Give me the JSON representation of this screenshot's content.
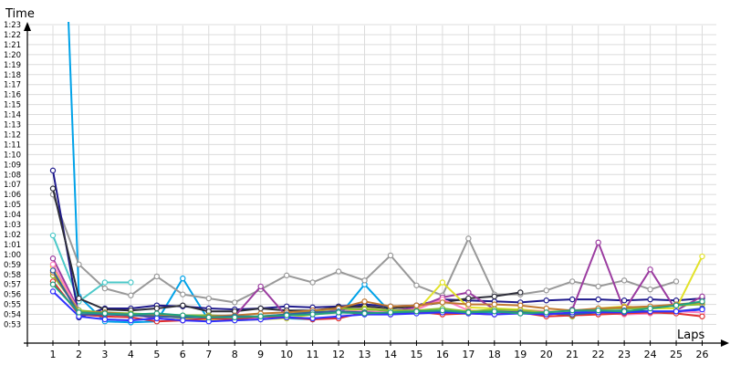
{
  "chart_data": {
    "type": "line",
    "ylabel": "Time",
    "xlabel": "Laps",
    "x": [
      1,
      2,
      3,
      4,
      5,
      6,
      7,
      8,
      9,
      10,
      11,
      12,
      13,
      14,
      15,
      16,
      17,
      18,
      19,
      20,
      21,
      22,
      23,
      24,
      25,
      26
    ],
    "x_tick_labels": [
      "1",
      "2",
      "3",
      "4",
      "5",
      "6",
      "7",
      "8",
      "9",
      "10",
      "11",
      "12",
      "13",
      "14",
      "15",
      "16",
      "17",
      "18",
      "19",
      "20",
      "21",
      "22",
      "23",
      "24",
      "25",
      "26"
    ],
    "y_unit": "seconds",
    "ylim": [
      53,
      83
    ],
    "y_tick_labels": [
      "0:53",
      "0:54",
      "0:55",
      "0:56",
      "0:57",
      "0:58",
      "0:59",
      "1:00",
      "1:01",
      "1:02",
      "1:03",
      "1:04",
      "1:05",
      "1:06",
      "1:07",
      "1:08",
      "1:09",
      "1:10",
      "1:11",
      "1:12",
      "1:13",
      "1:14",
      "1:15",
      "1:16",
      "1:17",
      "1:18",
      "1:19",
      "1:20",
      "1:21",
      "1:22",
      "1:23"
    ],
    "grid": true,
    "series": [
      {
        "color": "#00a2e8",
        "values": [
          null,
          55.8,
          53.3,
          53.2,
          53.3,
          57.6,
          53.4,
          53.5,
          53.6,
          53.6,
          53.5,
          53.8,
          57.0,
          54.2,
          54.3,
          54.2,
          54.2,
          54.2,
          54.3,
          54.2,
          54.3,
          54.3,
          54.4,
          54.2,
          54.2,
          54.5
        ]
      },
      {
        "color": "#999999",
        "values": [
          66.0,
          59.0,
          56.6,
          55.9,
          57.8,
          56.0,
          55.6,
          55.2,
          56.5,
          57.9,
          57.2,
          58.3,
          57.4,
          59.9,
          56.9,
          55.9,
          61.6,
          56.0,
          56.0,
          56.4,
          57.3,
          56.8,
          57.4,
          56.5,
          57.3,
          null
        ]
      },
      {
        "color": "#4cc9c9",
        "values": [
          61.9,
          55.3,
          57.2,
          57.2,
          null,
          null,
          null,
          null,
          null,
          null,
          null,
          null,
          null,
          null,
          null,
          null,
          null,
          null,
          null,
          null,
          null,
          null,
          null,
          null,
          null,
          null
        ]
      },
      {
        "color": "#1f1a8c",
        "values": [
          68.4,
          53.7,
          54.6,
          54.6,
          54.9,
          54.8,
          54.6,
          54.5,
          54.6,
          54.8,
          54.7,
          54.8,
          55.0,
          54.8,
          54.9,
          55.5,
          55.4,
          55.3,
          55.2,
          55.4,
          55.5,
          55.5,
          55.4,
          55.5,
          55.4,
          55.6
        ]
      },
      {
        "color": "#2e2e3a",
        "values": [
          66.6,
          55.6,
          54.5,
          54.4,
          54.6,
          54.9,
          54.3,
          54.3,
          54.6,
          54.4,
          54.4,
          54.7,
          54.8,
          54.6,
          54.8,
          55.2,
          55.6,
          55.8,
          56.2,
          null,
          null,
          null,
          null,
          null,
          null,
          null
        ]
      },
      {
        "color": "#9b3ca0",
        "values": [
          59.6,
          54.4,
          54.1,
          54.0,
          53.6,
          53.4,
          53.5,
          53.8,
          56.8,
          53.8,
          54.4,
          54.5,
          54.6,
          54.3,
          54.7,
          55.7,
          56.2,
          54.5,
          54.3,
          54.0,
          54.5,
          61.2,
          54.4,
          58.5,
          54.4,
          55.8
        ]
      },
      {
        "color": "#e2e22a",
        "values": [
          58.8,
          54.2,
          54.1,
          53.9,
          53.9,
          53.6,
          53.4,
          53.4,
          53.5,
          53.6,
          54.0,
          54.2,
          54.6,
          54.4,
          54.3,
          57.2,
          54.7,
          54.6,
          54.5,
          54.3,
          54.3,
          54.6,
          54.8,
          54.6,
          54.6,
          59.8
        ]
      },
      {
        "color": "#ff80c0",
        "values": [
          59.0,
          54.3,
          54.2,
          53.9,
          53.9,
          53.8,
          53.7,
          53.7,
          53.5,
          53.9,
          54.1,
          54.3,
          54.3,
          54.2,
          54.5,
          55.5,
          54.4,
          54.3,
          54.4,
          54.3,
          54.1,
          54.2,
          54.0,
          54.1,
          54.3,
          54.2
        ]
      },
      {
        "color": "#88c030",
        "values": [
          57.9,
          54.4,
          54.2,
          54.1,
          54.0,
          53.9,
          53.9,
          53.8,
          53.8,
          54.0,
          54.3,
          54.6,
          54.5,
          54.4,
          54.4,
          54.6,
          54.3,
          54.5,
          54.4,
          54.2,
          53.8,
          54.5,
          54.6,
          54.6,
          54.9,
          55.0
        ]
      },
      {
        "color": "#e03030",
        "values": [
          57.3,
          54.0,
          53.8,
          53.7,
          53.3,
          53.4,
          53.6,
          53.5,
          53.8,
          53.7,
          53.5,
          53.6,
          54.2,
          54.0,
          54.3,
          54.0,
          54.1,
          54.0,
          54.2,
          53.8,
          53.9,
          54.0,
          54.1,
          54.2,
          54.1,
          53.8
        ]
      },
      {
        "color": "#c07830",
        "values": [
          58.2,
          54.2,
          54.2,
          54.0,
          53.9,
          53.7,
          53.8,
          53.9,
          54.1,
          54.2,
          54.4,
          54.6,
          55.3,
          54.8,
          54.9,
          55.2,
          55.0,
          55.0,
          54.9,
          54.6,
          54.4,
          54.6,
          54.7,
          54.8,
          55.0,
          55.2
        ]
      },
      {
        "color": "#3060a0",
        "values": [
          58.4,
          54.0,
          54.0,
          53.9,
          53.8,
          53.7,
          53.7,
          53.8,
          53.8,
          54.0,
          54.2,
          54.3,
          54.2,
          54.1,
          54.3,
          54.3,
          54.2,
          54.3,
          54.2,
          54.1,
          54.0,
          54.2,
          54.4,
          54.3,
          54.3,
          54.6
        ]
      },
      {
        "color": "#3030ff",
        "values": [
          56.3,
          53.8,
          53.5,
          53.4,
          53.6,
          53.4,
          53.3,
          53.4,
          53.5,
          53.7,
          53.6,
          53.8,
          54.0,
          54.0,
          54.1,
          54.2,
          54.1,
          54.0,
          54.1,
          54.0,
          54.2,
          54.2,
          54.2,
          54.3,
          54.3,
          54.5
        ]
      },
      {
        "color": "#20a080",
        "values": [
          57.0,
          54.2,
          54.1,
          54.0,
          54.1,
          53.9,
          53.7,
          53.7,
          53.8,
          53.9,
          54.0,
          54.2,
          54.1,
          54.2,
          54.3,
          54.4,
          54.2,
          54.3,
          54.1,
          54.2,
          54.4,
          54.4,
          54.3,
          54.6,
          54.9,
          55.3
        ]
      }
    ]
  }
}
